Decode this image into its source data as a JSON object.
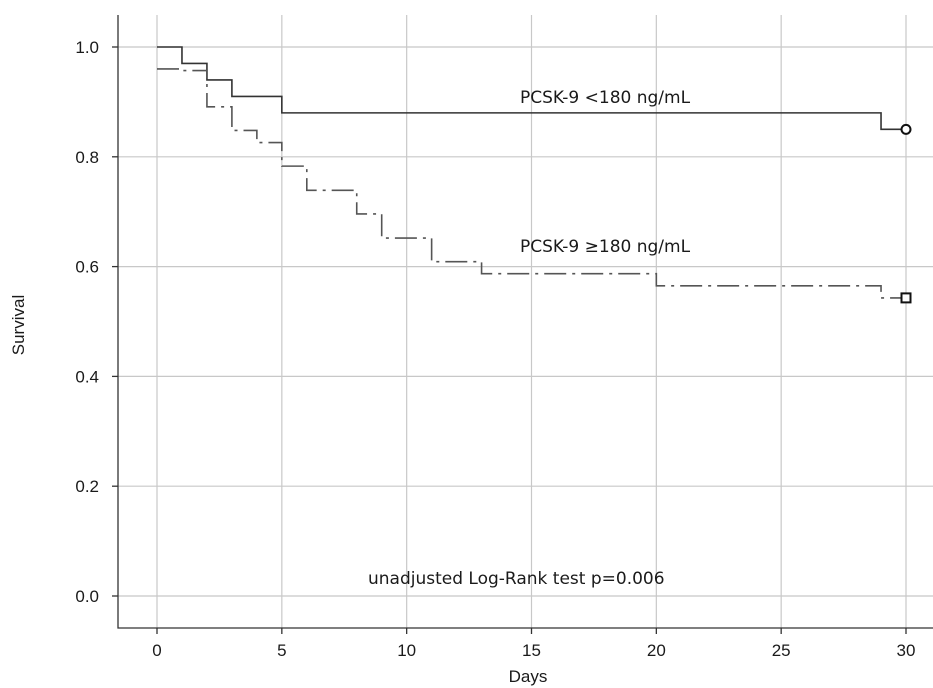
{
  "chart_data": {
    "type": "line",
    "subtype": "kaplan-meier step",
    "xlabel": "Days",
    "ylabel": "Survival",
    "xlim": [
      0,
      30
    ],
    "ylim": [
      0,
      1
    ],
    "x_ticks": [
      "0",
      "5",
      "10",
      "15",
      "20",
      "25",
      "30"
    ],
    "y_ticks": [
      "0.0",
      "0.2",
      "0.4",
      "0.6",
      "0.8",
      "1.0"
    ],
    "grid": "on",
    "series": [
      {
        "name": "PCSK-9 <180 ng/mL",
        "line_style": "solid",
        "color": "#333333",
        "end_marker": "circle",
        "x": [
          0,
          1,
          2,
          3,
          5,
          29,
          30
        ],
        "y": [
          1.0,
          0.97,
          0.94,
          0.91,
          0.88,
          0.85,
          0.85
        ]
      },
      {
        "name": "PCSK-9 ≥180 ng/mL",
        "line_style": "dash-dot",
        "color": "#555555",
        "end_marker": "square",
        "x": [
          0,
          1,
          2,
          3,
          4,
          5,
          6,
          8,
          9,
          11,
          13,
          20,
          29,
          30
        ],
        "y": [
          0.96,
          0.957,
          0.891,
          0.848,
          0.826,
          0.783,
          0.739,
          0.696,
          0.652,
          0.609,
          0.587,
          0.565,
          0.543,
          0.543
        ]
      }
    ],
    "annotations": [
      "unadjusted Log-Rank test p=0.006"
    ]
  }
}
